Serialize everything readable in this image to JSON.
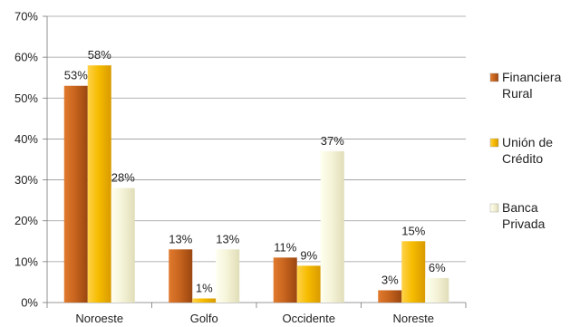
{
  "chart_data": {
    "type": "bar",
    "categories": [
      "Noroeste",
      "Golfo",
      "Occidente",
      "Noreste"
    ],
    "series": [
      {
        "name": "Financiera Rural",
        "legend_lines": [
          "Financiera",
          "Rural"
        ],
        "values": [
          53,
          13,
          11,
          3
        ],
        "labels": [
          "53%",
          "13%",
          "11%",
          "3%"
        ],
        "color": "#C0601C"
      },
      {
        "name": "Unión de Crédito",
        "legend_lines": [
          "Unión de",
          "Crédito"
        ],
        "values": [
          58,
          1,
          9,
          15
        ],
        "labels": [
          "58%",
          "1%",
          "9%",
          "15%"
        ],
        "color": "#F5B800"
      },
      {
        "name": "Banca Privada",
        "legend_lines": [
          "Banca",
          "Privada"
        ],
        "values": [
          28,
          13,
          37,
          6
        ],
        "labels": [
          "28%",
          "13%",
          "37%",
          "6%"
        ],
        "color": "#F2F0D2"
      }
    ],
    "yticks": [
      "0%",
      "10%",
      "20%",
      "30%",
      "40%",
      "50%",
      "60%",
      "70%"
    ],
    "ylim": [
      0,
      70
    ],
    "grid": true,
    "legend_position": "right",
    "title": "",
    "xlabel": "",
    "ylabel": ""
  }
}
